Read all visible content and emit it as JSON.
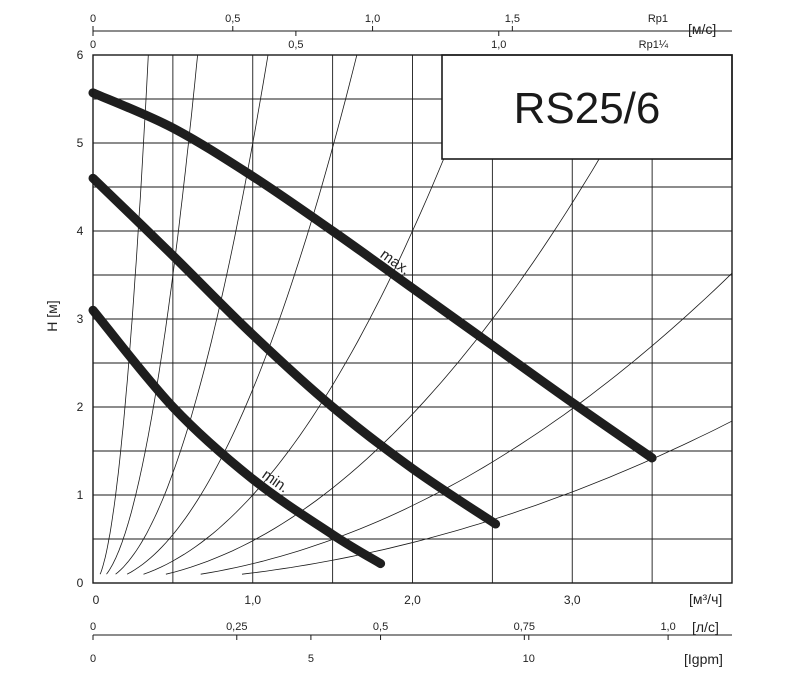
{
  "chart_data": {
    "type": "line",
    "title": "RS25/6",
    "xlabel": "[м³/ч]",
    "ylabel": "H [м]",
    "xlim": [
      0,
      4.0
    ],
    "ylim": [
      0,
      6
    ],
    "x_ticks": [
      {
        "value": 0,
        "label": "0"
      },
      {
        "value": 1.0,
        "label": "1,0"
      },
      {
        "value": 2.0,
        "label": "2,0"
      },
      {
        "value": 3.0,
        "label": "3,0"
      }
    ],
    "y_ticks": [
      {
        "value": 0,
        "label": "0"
      },
      {
        "value": 1,
        "label": "1"
      },
      {
        "value": 2,
        "label": "2"
      },
      {
        "value": 3,
        "label": "3"
      },
      {
        "value": 4,
        "label": "4"
      },
      {
        "value": 5,
        "label": "5"
      },
      {
        "value": 6,
        "label": "6"
      }
    ],
    "grid": true,
    "series": [
      {
        "name": "max.",
        "x": [
          0,
          0.5,
          1.0,
          1.5,
          2.0,
          2.5,
          3.0,
          3.5
        ],
        "y": [
          5.57,
          5.17,
          4.62,
          4.0,
          3.35,
          2.7,
          2.05,
          1.42
        ]
      },
      {
        "name": "",
        "x": [
          0,
          0.5,
          1.0,
          1.5,
          2.0,
          2.52
        ],
        "y": [
          4.6,
          3.72,
          2.82,
          2.0,
          1.3,
          0.67
        ]
      },
      {
        "name": "min.",
        "x": [
          0,
          0.5,
          1.0,
          1.5,
          1.8
        ],
        "y": [
          3.1,
          2.0,
          1.18,
          0.55,
          0.22
        ]
      }
    ],
    "system_curves_k": [
      50,
      14,
      5,
      2.2,
      1.0,
      0.48,
      0.22,
      0.115
    ],
    "top_axes": [
      {
        "unit": "[м/с]",
        "pipe": "Rp1",
        "ticks": [
          {
            "value": 0,
            "label": "0"
          },
          {
            "value": 0.5,
            "label": "0,5"
          },
          {
            "value": 1.0,
            "label": "1,0"
          },
          {
            "value": 1.5,
            "label": "1,5"
          }
        ],
        "flow_per_unit": 1.75
      },
      {
        "unit": "",
        "pipe": "Rp1¼",
        "ticks": [
          {
            "value": 0,
            "label": "0"
          },
          {
            "value": 0.5,
            "label": "0,5"
          },
          {
            "value": 1.0,
            "label": "1,0"
          }
        ],
        "flow_per_unit": 2.54
      }
    ],
    "bottom_axes": [
      {
        "unit": "[л/с]",
        "ticks": [
          {
            "value": 0,
            "label": "0"
          },
          {
            "value": 0.25,
            "label": "0,25"
          },
          {
            "value": 0.5,
            "label": "0,5"
          },
          {
            "value": 0.75,
            "label": "0,75"
          },
          {
            "value": 1.0,
            "label": "1,0"
          }
        ],
        "flow_per_unit": 3.6
      },
      {
        "unit": "[Igpm]",
        "ticks": [
          {
            "value": 0,
            "label": "0"
          },
          {
            "value": 5,
            "label": "5"
          },
          {
            "value": 10,
            "label": "10"
          }
        ],
        "flow_per_unit": 0.2728
      }
    ]
  }
}
